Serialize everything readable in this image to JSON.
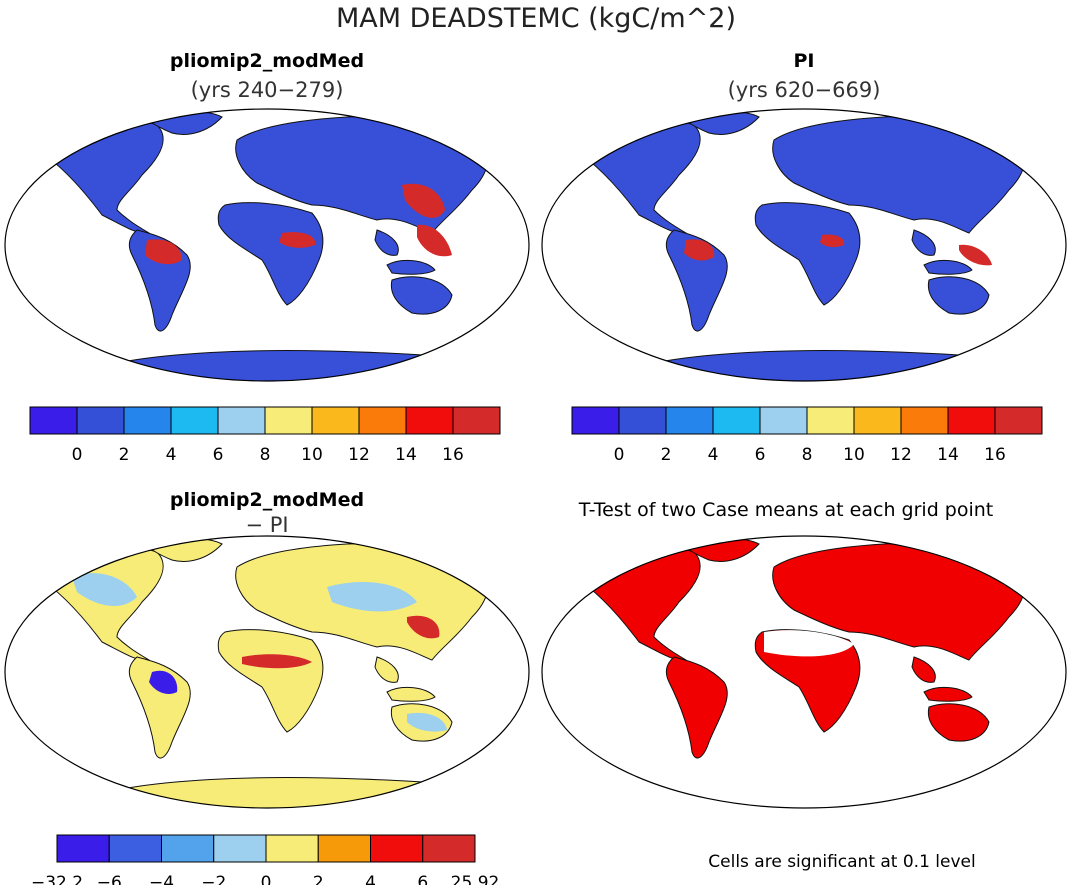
{
  "figure": {
    "title": "MAM DEADSTEMC (kgC/m^2)"
  },
  "panels": [
    {
      "id": "model",
      "title": "pliomip2_modMed",
      "subtitle": "(yrs 240−279)",
      "fill": "#3850d8"
    },
    {
      "id": "control",
      "title": "PI",
      "subtitle": "(yrs 620−669)",
      "fill": "#3850d8"
    },
    {
      "id": "difference",
      "title": "pliomip2_modMed",
      "subtitle": "− PI",
      "fill": "#f7ec77"
    },
    {
      "id": "ttest",
      "title": "T-Test of two Case means at each grid point",
      "subtitle": "",
      "fill": "#f00000"
    }
  ],
  "colorbar_abs": {
    "colors": [
      "#3a1de8",
      "#3350d6",
      "#2585ec",
      "#1cbaf0",
      "#9cd0ee",
      "#f7ec77",
      "#fbb81c",
      "#fa7a0a",
      "#f20d0d",
      "#d42a2a"
    ],
    "labels": [
      "0",
      "2",
      "4",
      "6",
      "8",
      "10",
      "12",
      "14",
      "16"
    ]
  },
  "colorbar_diff": {
    "colors": [
      "#3a1de8",
      "#3b5fe0",
      "#52a3ec",
      "#9cd0ee",
      "#f7ec77",
      "#f79a0a",
      "#f20d0d",
      "#d42a2a"
    ],
    "labels": [
      "−32.2",
      "−6",
      "−4",
      "−2",
      "0",
      "2",
      "4",
      "6",
      "25.92"
    ]
  },
  "ttest_note": "Cells are significant at 0.1 level",
  "colors": {
    "high": "#d42a2a",
    "mid": "#f7ec77",
    "low_diff": "#9cd0ee",
    "neg_diff": "#3a1de8"
  }
}
